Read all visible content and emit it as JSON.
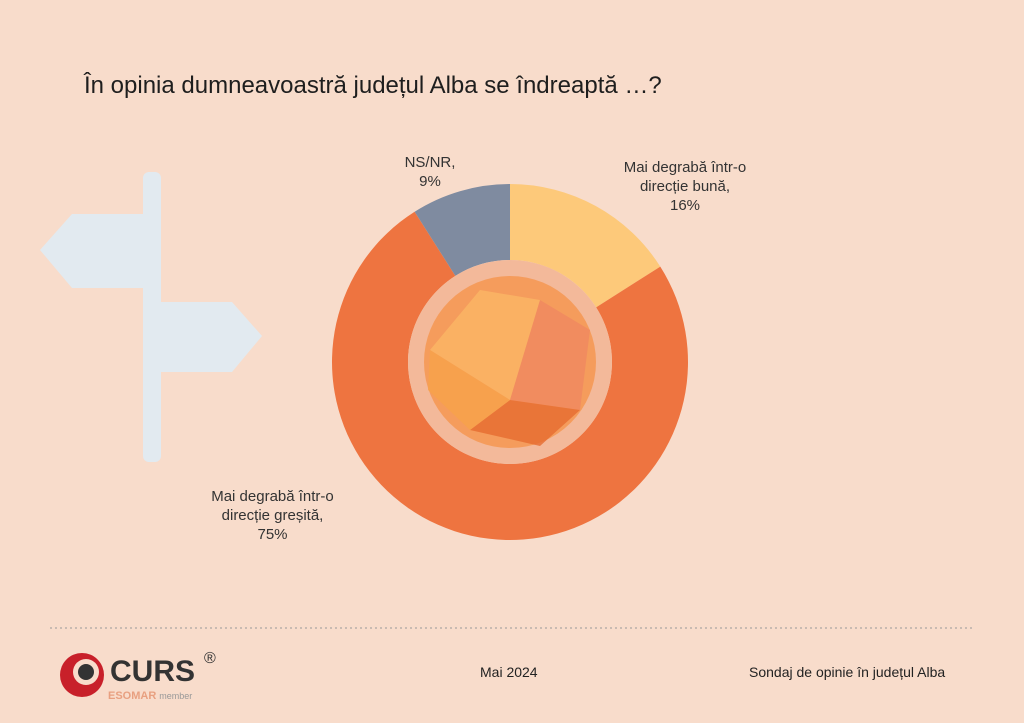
{
  "chart_data": {
    "type": "donut",
    "title": "În opinia dumneavoastră județul Alba se îndreaptă …?",
    "categories": [
      "Mai degrabă într-o direcție bună,",
      "Mai degrabă într-o direcție greșită,",
      "NS/NR,"
    ],
    "values": [
      16,
      75,
      9
    ],
    "value_labels": [
      "16%",
      "75%",
      "9%"
    ],
    "colors": [
      "#fdc97a",
      "#ee7440",
      "#7f8ba0"
    ]
  },
  "footer": {
    "date": "Mai 2024",
    "caption": "Sondaj de opinie în județul Alba"
  },
  "logo": {
    "name": "CURS",
    "mark": "®",
    "org": "ESOMAR",
    "tag": "member"
  }
}
